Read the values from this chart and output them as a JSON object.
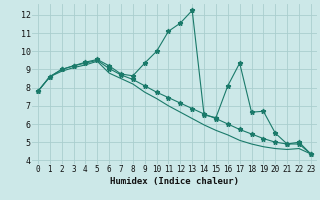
{
  "xlabel": "Humidex (Indice chaleur)",
  "bg_color": "#cce8e8",
  "line_color": "#1a7a6a",
  "grid_color": "#aacece",
  "xlim": [
    -0.5,
    23.5
  ],
  "ylim": [
    3.8,
    12.6
  ],
  "yticks": [
    4,
    5,
    6,
    7,
    8,
    9,
    10,
    11,
    12
  ],
  "xticks": [
    0,
    1,
    2,
    3,
    4,
    5,
    6,
    7,
    8,
    9,
    10,
    11,
    12,
    13,
    14,
    15,
    16,
    17,
    18,
    19,
    20,
    21,
    22,
    23
  ],
  "line1_x": [
    0,
    1,
    2,
    3,
    4,
    5,
    6,
    7,
    8,
    9,
    10,
    11,
    12,
    13,
    14,
    15,
    16,
    17,
    18,
    19,
    20,
    21,
    22,
    23
  ],
  "line1_y": [
    7.8,
    8.6,
    9.0,
    9.2,
    9.4,
    9.55,
    9.2,
    8.75,
    8.65,
    9.35,
    10.0,
    11.1,
    11.55,
    12.25,
    6.5,
    6.35,
    8.1,
    9.35,
    6.65,
    6.7,
    5.5,
    4.9,
    5.0,
    4.35
  ],
  "line2_x": [
    0,
    1,
    2,
    3,
    4,
    5,
    6,
    7,
    8,
    9,
    10,
    11,
    12,
    13,
    14,
    15,
    16,
    17,
    18,
    19,
    20,
    21,
    22,
    23
  ],
  "line2_y": [
    7.8,
    8.6,
    9.0,
    9.2,
    9.35,
    9.5,
    9.05,
    8.7,
    8.45,
    8.1,
    7.75,
    7.45,
    7.15,
    6.85,
    6.55,
    6.3,
    6.0,
    5.7,
    5.45,
    5.2,
    5.0,
    4.9,
    4.9,
    4.35
  ],
  "line3_x": [
    0,
    1,
    2,
    3,
    4,
    5,
    6,
    7,
    8,
    9,
    10,
    11,
    12,
    13,
    14,
    15,
    16,
    17,
    18,
    19,
    20,
    21,
    22,
    23
  ],
  "line3_y": [
    7.8,
    8.6,
    8.9,
    9.1,
    9.25,
    9.45,
    8.8,
    8.5,
    8.2,
    7.75,
    7.4,
    7.0,
    6.65,
    6.3,
    5.95,
    5.65,
    5.4,
    5.1,
    4.9,
    4.75,
    4.65,
    4.6,
    4.65,
    4.35
  ]
}
